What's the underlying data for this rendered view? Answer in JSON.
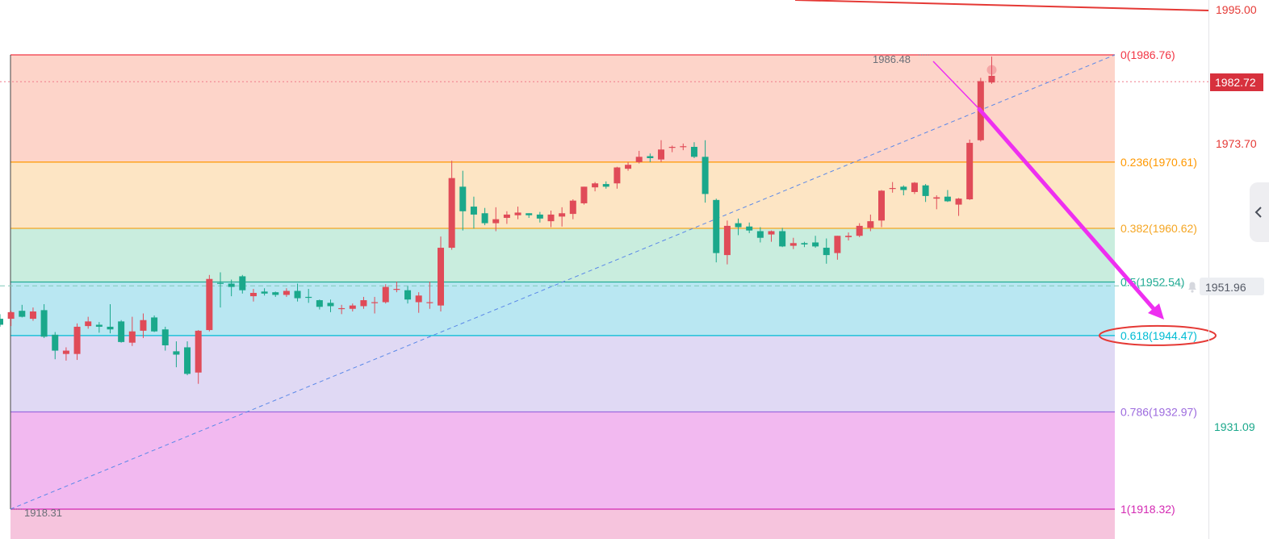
{
  "chart_data": {
    "type": "candlestick",
    "ylim": [
      1914.0,
      1997.0
    ],
    "candles": [
      [
        1947.0,
        1947.7,
        1945.8,
        1946.1
      ],
      [
        1947.0,
        1948.2,
        1945.9,
        1948.0
      ],
      [
        1948.2,
        1949.1,
        1947.2,
        1947.3
      ],
      [
        1947.0,
        1948.7,
        1946.7,
        1948.1
      ],
      [
        1948.3,
        1949.2,
        1944.1,
        1944.3
      ],
      [
        1944.6,
        1945.0,
        1940.9,
        1942.2
      ],
      [
        1941.7,
        1942.7,
        1940.7,
        1942.2
      ],
      [
        1941.7,
        1946.3,
        1940.8,
        1945.8
      ],
      [
        1945.9,
        1947.3,
        1945.5,
        1946.6
      ],
      [
        1946.1,
        1946.5,
        1944.9,
        1945.8
      ],
      [
        1945.8,
        1949.2,
        1944.8,
        1945.4
      ],
      [
        1946.6,
        1946.8,
        1943.4,
        1943.5
      ],
      [
        1943.4,
        1947.3,
        1942.9,
        1945.1
      ],
      [
        1945.2,
        1947.8,
        1944.1,
        1946.8
      ],
      [
        1947.2,
        1947.5,
        1945.0,
        1945.1
      ],
      [
        1945.4,
        1945.8,
        1942.2,
        1943.0
      ],
      [
        1942.1,
        1943.6,
        1939.7,
        1941.6
      ],
      [
        1942.7,
        1943.6,
        1938.5,
        1938.7
      ],
      [
        1938.9,
        1945.3,
        1937.2,
        1945.2
      ],
      [
        1945.3,
        1953.6,
        1945.1,
        1953.0
      ],
      [
        1952.4,
        1954.0,
        1948.7,
        1952.3
      ],
      [
        1952.3,
        1952.9,
        1950.4,
        1951.8
      ],
      [
        1953.4,
        1953.6,
        1950.8,
        1951.3
      ],
      [
        1950.4,
        1951.5,
        1949.6,
        1950.9
      ],
      [
        1951.1,
        1951.6,
        1950.5,
        1950.8
      ],
      [
        1951.0,
        1951.1,
        1950.3,
        1950.6
      ],
      [
        1950.6,
        1951.6,
        1950.3,
        1951.2
      ],
      [
        1951.2,
        1952.3,
        1949.6,
        1950.1
      ],
      [
        1950.3,
        1951.5,
        1949.4,
        1950.2
      ],
      [
        1949.8,
        1949.9,
        1948.4,
        1948.8
      ],
      [
        1949.4,
        1949.9,
        1948.0,
        1948.9
      ],
      [
        1948.5,
        1949.1,
        1947.7,
        1948.6
      ],
      [
        1948.5,
        1949.3,
        1948.1,
        1949.0
      ],
      [
        1948.9,
        1950.3,
        1948.5,
        1949.8
      ],
      [
        1949.5,
        1950.3,
        1947.8,
        1949.5
      ],
      [
        1949.5,
        1952.2,
        1949.3,
        1951.8
      ],
      [
        1951.4,
        1952.6,
        1951.0,
        1951.5
      ],
      [
        1951.3,
        1951.9,
        1949.3,
        1949.9
      ],
      [
        1949.5,
        1951.0,
        1947.9,
        1950.5
      ],
      [
        1949.4,
        1952.6,
        1948.5,
        1949.5
      ],
      [
        1949.0,
        1959.4,
        1948.1,
        1957.7
      ],
      [
        1957.7,
        1970.8,
        1957.4,
        1968.2
      ],
      [
        1966.9,
        1969.3,
        1960.3,
        1963.2
      ],
      [
        1963.9,
        1965.4,
        1960.6,
        1962.7
      ],
      [
        1962.9,
        1963.7,
        1961.1,
        1961.4
      ],
      [
        1961.4,
        1963.8,
        1960.2,
        1962.0
      ],
      [
        1962.2,
        1963.2,
        1961.3,
        1962.7
      ],
      [
        1962.6,
        1963.9,
        1962.0,
        1963.0
      ],
      [
        1962.9,
        1962.9,
        1962.2,
        1962.6
      ],
      [
        1962.7,
        1963.1,
        1961.5,
        1962.1
      ],
      [
        1961.7,
        1963.3,
        1960.8,
        1962.7
      ],
      [
        1962.4,
        1963.8,
        1960.9,
        1962.9
      ],
      [
        1962.8,
        1965.0,
        1962.0,
        1964.8
      ],
      [
        1964.4,
        1966.9,
        1964.2,
        1966.9
      ],
      [
        1966.8,
        1967.6,
        1966.2,
        1967.4
      ],
      [
        1967.3,
        1967.7,
        1966.6,
        1966.9
      ],
      [
        1967.4,
        1969.9,
        1966.6,
        1969.8
      ],
      [
        1969.6,
        1970.6,
        1969.3,
        1970.2
      ],
      [
        1970.6,
        1972.3,
        1970.4,
        1971.4
      ],
      [
        1971.5,
        1971.9,
        1970.6,
        1971.2
      ],
      [
        1971.0,
        1973.9,
        1970.6,
        1972.5
      ],
      [
        1972.8,
        1973.1,
        1972.1,
        1972.9
      ],
      [
        1972.9,
        1973.4,
        1972.4,
        1973.0
      ],
      [
        1972.9,
        1973.6,
        1971.2,
        1971.4
      ],
      [
        1971.4,
        1973.9,
        1964.5,
        1965.8
      ],
      [
        1964.9,
        1965.1,
        1955.5,
        1956.9
      ],
      [
        1956.6,
        1961.8,
        1955.2,
        1961.0
      ],
      [
        1961.4,
        1962.1,
        1959.6,
        1960.8
      ],
      [
        1960.9,
        1961.5,
        1959.9,
        1960.3
      ],
      [
        1960.2,
        1960.8,
        1958.5,
        1959.2
      ],
      [
        1959.7,
        1960.3,
        1958.6,
        1960.2
      ],
      [
        1960.2,
        1960.7,
        1957.8,
        1957.9
      ],
      [
        1958.0,
        1959.2,
        1957.5,
        1958.4
      ],
      [
        1958.4,
        1958.6,
        1957.8,
        1958.2
      ],
      [
        1958.5,
        1959.5,
        1957.7,
        1957.9
      ],
      [
        1957.7,
        1959.1,
        1955.3,
        1956.6
      ],
      [
        1956.9,
        1959.5,
        1955.9,
        1959.5
      ],
      [
        1959.3,
        1960.0,
        1958.8,
        1959.5
      ],
      [
        1959.5,
        1961.4,
        1959.3,
        1961.0
      ],
      [
        1960.7,
        1962.7,
        1960.2,
        1961.7
      ],
      [
        1961.8,
        1966.4,
        1960.8,
        1966.3
      ],
      [
        1966.6,
        1967.6,
        1966.0,
        1966.7
      ],
      [
        1966.9,
        1967.1,
        1965.6,
        1966.4
      ],
      [
        1966.1,
        1967.6,
        1965.8,
        1967.5
      ],
      [
        1967.1,
        1967.3,
        1964.6,
        1965.5
      ],
      [
        1965.1,
        1965.6,
        1963.5,
        1965.3
      ],
      [
        1965.4,
        1966.4,
        1964.6,
        1964.7
      ],
      [
        1964.2,
        1965.2,
        1962.5,
        1965.1
      ],
      [
        1965.0,
        1974.0,
        1964.9,
        1973.5
      ],
      [
        1973.9,
        1983.3,
        1973.7,
        1982.8
      ],
      [
        1982.6,
        1986.5,
        1982.4,
        1983.6
      ]
    ],
    "fibonacci": [
      {
        "ratio": "0",
        "value": 1986.76,
        "label": "0(1986.76)",
        "color": "#f23645",
        "fill": "#fdd4c9"
      },
      {
        "ratio": "0.236",
        "value": 1970.61,
        "label": "0.236(1970.61)",
        "color": "#ff9800",
        "fill": "#fde5c4"
      },
      {
        "ratio": "0.382",
        "value": 1960.62,
        "label": "0.382(1960.62)",
        "color": "#f5a623",
        "fill": "#c9edde"
      },
      {
        "ratio": "0.5",
        "value": 1952.54,
        "label": "0.5(1952.54)",
        "color": "#22ab94",
        "fill": "#b9e7f2"
      },
      {
        "ratio": "0.618",
        "value": 1944.47,
        "label": "0.618(1944.47)",
        "color": "#00bcd4",
        "fill": "#e0d9f4"
      },
      {
        "ratio": "0.786",
        "value": 1932.97,
        "label": "0.786(1932.97)",
        "color": "#9c6ade",
        "fill": "#f2b9f0"
      },
      {
        "ratio": "1",
        "value": 1918.32,
        "label": "1(1918.32)",
        "color": "#d42ab3",
        "fill": "#f6c4dd"
      }
    ],
    "annotations": {
      "high_label": "1986.48",
      "low_label": "1918.31"
    },
    "price_axis": {
      "top_line_value": "1995.00",
      "current_price": "1982.72",
      "tick_1": "1973.70",
      "crosshair_price": "1951.96",
      "tick_2": "1931.09"
    },
    "colors": {
      "up": "#e04b58",
      "down": "#1aa88b",
      "trendline": "#5a88e8",
      "arrow": "#ee2ff0",
      "highlight_ellipse": "#e53935",
      "tick_red": "#e53935",
      "tick_green": "#1aa88b"
    }
  },
  "ui": {
    "collapse_icon": "chevron-left-icon"
  }
}
